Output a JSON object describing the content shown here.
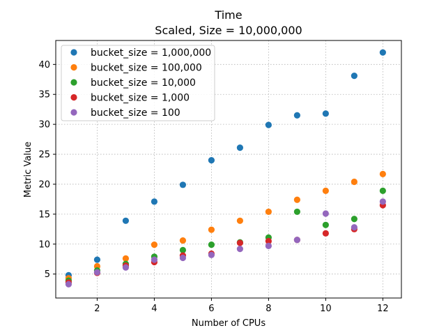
{
  "chart_data": {
    "type": "scatter",
    "title": "Time",
    "subtitle": "Scaled, Size = 10,000,000",
    "xlabel": "Number of CPUs",
    "ylabel": "Metric Value",
    "xlim": [
      0.55,
      12.65
    ],
    "ylim": [
      1.0,
      44.0
    ],
    "xticks": [
      2,
      4,
      6,
      8,
      10,
      12
    ],
    "yticks": [
      5,
      10,
      15,
      20,
      25,
      30,
      35,
      40
    ],
    "grid": true,
    "legend_position": "top-left",
    "series": [
      {
        "name": "bucket_size = 1,000,000",
        "color": "#1f77b4",
        "x": [
          1,
          2,
          3,
          4,
          5,
          6,
          7,
          8,
          9,
          10,
          11,
          12
        ],
        "y": [
          4.8,
          7.4,
          13.9,
          17.1,
          19.9,
          24.0,
          26.1,
          29.9,
          31.5,
          31.8,
          38.1,
          42.0
        ]
      },
      {
        "name": "bucket_size = 100,000",
        "color": "#ff7f0e",
        "x": [
          1,
          2,
          3,
          4,
          5,
          6,
          7,
          8,
          9,
          10,
          11,
          12
        ],
        "y": [
          4.3,
          6.3,
          7.6,
          9.9,
          10.6,
          12.4,
          13.9,
          15.4,
          17.4,
          18.9,
          20.4,
          21.7
        ]
      },
      {
        "name": "bucket_size = 10,000",
        "color": "#2ca02c",
        "x": [
          1,
          2,
          3,
          4,
          5,
          6,
          7,
          8,
          9,
          10,
          11,
          12
        ],
        "y": [
          3.9,
          5.6,
          6.7,
          7.9,
          9.0,
          9.9,
          10.3,
          11.1,
          15.4,
          13.2,
          14.2,
          18.9
        ]
      },
      {
        "name": "bucket_size = 1,000",
        "color": "#d62728",
        "x": [
          1,
          2,
          3,
          4,
          5,
          6,
          7,
          8,
          9,
          10,
          11,
          12
        ],
        "y": [
          3.6,
          5.2,
          6.4,
          7.0,
          8.1,
          8.4,
          10.2,
          10.5,
          10.7,
          11.8,
          12.5,
          16.5
        ]
      },
      {
        "name": "bucket_size = 100",
        "color": "#9467bd",
        "x": [
          1,
          2,
          3,
          4,
          5,
          6,
          7,
          8,
          9,
          10,
          11,
          12
        ],
        "y": [
          3.3,
          5.3,
          6.1,
          7.4,
          7.7,
          8.2,
          9.2,
          9.7,
          10.7,
          15.1,
          12.8,
          17.1
        ]
      }
    ]
  }
}
